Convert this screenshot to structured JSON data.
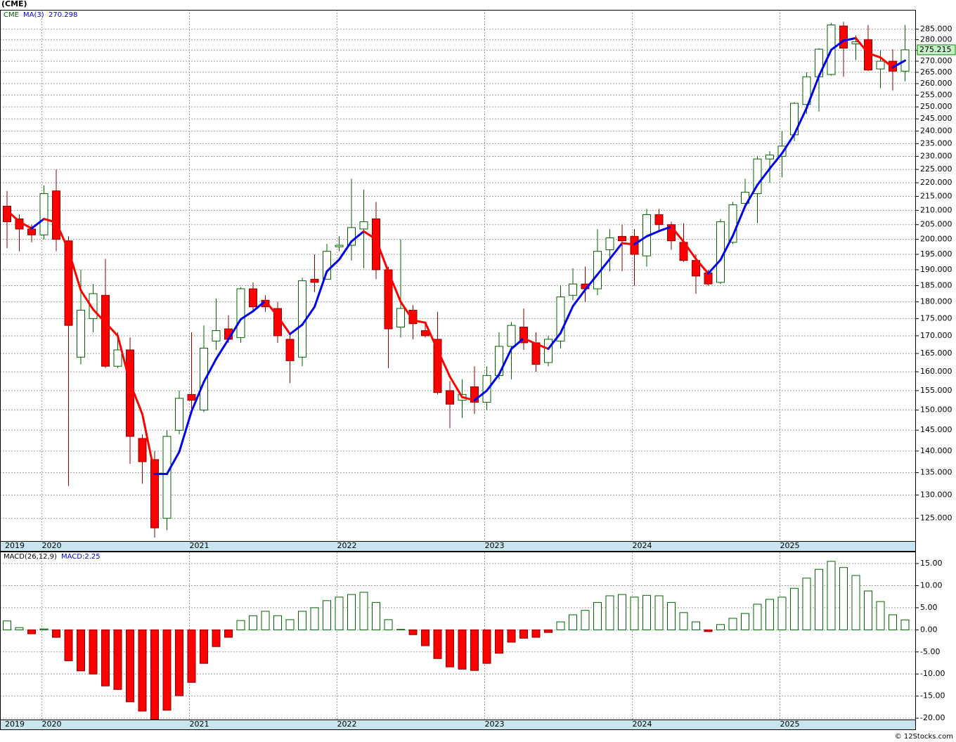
{
  "chart_data": [
    {
      "type": "candlestick",
      "title": "(CME)",
      "symbol": "CME",
      "ma_name": "MA(3)",
      "categories": [
        "2019",
        null,
        null,
        "2020",
        null,
        null,
        null,
        null,
        null,
        null,
        null,
        null,
        null,
        null,
        null,
        "2021",
        null,
        null,
        null,
        null,
        null,
        null,
        null,
        null,
        null,
        null,
        null,
        "2022",
        null,
        null,
        null,
        null,
        null,
        null,
        null,
        null,
        null,
        null,
        null,
        "2023",
        null,
        null,
        null,
        null,
        null,
        null,
        null,
        null,
        null,
        null,
        null,
        "2024",
        null,
        null,
        null,
        null,
        null,
        null,
        null,
        null,
        null,
        null,
        null,
        "2025",
        null,
        null,
        null,
        null,
        null,
        null,
        null,
        null,
        null,
        null
      ],
      "open": [
        211.5,
        207,
        203.5,
        201.5,
        217,
        199.5,
        164,
        175,
        182,
        161.5,
        166,
        143,
        138,
        125,
        145,
        154,
        150,
        168.5,
        172,
        169.5,
        184,
        180.5,
        178,
        169,
        164,
        187,
        187,
        197.5,
        198,
        203.5,
        207,
        190,
        172.5,
        177.5,
        171.5,
        169,
        155,
        152.5,
        156,
        152,
        159,
        167,
        172.5,
        168,
        162.5,
        168.5,
        182,
        185.5,
        184,
        196.5,
        201,
        201,
        194.5,
        208.5,
        205,
        199,
        193,
        189,
        186,
        199,
        212.5,
        216,
        229,
        230,
        238.5,
        251,
        263,
        264,
        286.5,
        278,
        280,
        266.5,
        270,
        265.5
      ],
      "high": [
        217,
        208.5,
        205,
        219,
        225,
        201,
        190,
        185.5,
        193.5,
        171,
        169.5,
        144,
        140,
        145,
        155,
        171,
        173,
        181,
        176,
        184.5,
        186,
        182,
        180,
        170.5,
        187.5,
        195,
        198.5,
        201,
        221.5,
        217.5,
        213,
        191,
        200,
        179,
        174,
        177,
        157.5,
        158,
        161.5,
        161.5,
        171,
        174,
        178,
        171,
        170,
        185,
        190.5,
        191,
        203.5,
        203.5,
        205,
        203.5,
        210.5,
        210.5,
        206,
        205.5,
        195,
        190,
        207,
        213,
        221.5,
        230,
        232,
        240,
        252,
        265,
        276,
        288,
        288.5,
        282,
        287,
        275,
        275.5,
        287
      ],
      "low": [
        197,
        196,
        199,
        200,
        196,
        132,
        162,
        171,
        161,
        161,
        137,
        132.5,
        121,
        122.5,
        144,
        150,
        149.5,
        166,
        168,
        168,
        177,
        177,
        168,
        157,
        161.5,
        183,
        188,
        196,
        193,
        190.5,
        187,
        161,
        169.5,
        169,
        169.5,
        154,
        145.5,
        148,
        149,
        150,
        158,
        158,
        166,
        160,
        161.5,
        166.5,
        180.5,
        180,
        182,
        189.5,
        189.5,
        185,
        191,
        203,
        196.5,
        192.5,
        182.5,
        185,
        185.5,
        198.5,
        211,
        205.5,
        220,
        222,
        236,
        247,
        248,
        263.5,
        263,
        270.5,
        265.5,
        258,
        257,
        261
      ],
      "close": [
        206,
        203.5,
        201.5,
        216,
        200,
        173,
        177.5,
        182.5,
        161.5,
        166,
        143.5,
        137.5,
        123,
        143.5,
        153,
        152.5,
        166.5,
        171.5,
        169,
        184,
        178.5,
        178.5,
        170,
        163,
        186.5,
        186,
        196,
        198,
        204,
        206,
        190,
        172,
        178,
        173.5,
        170,
        154.5,
        151.5,
        154,
        152,
        159,
        167,
        173,
        168,
        162,
        169,
        181.5,
        185.5,
        184,
        196,
        200.5,
        199.5,
        195,
        208.5,
        205,
        199.5,
        193,
        188,
        185.5,
        206,
        212,
        216.5,
        229,
        230.5,
        234,
        251.5,
        263,
        275.5,
        287,
        276,
        279,
        266,
        270,
        265.5,
        275.215
      ],
      "ma": [
        210,
        206,
        203.7,
        207,
        205.8,
        196.3,
        183.5,
        177.7,
        173.8,
        170,
        157,
        149,
        134.7,
        134.7,
        139.8,
        149.7,
        157.3,
        163.5,
        169,
        174.8,
        177.2,
        180.3,
        175.7,
        170.5,
        173.2,
        178.5,
        189.5,
        193.3,
        199.3,
        202.7,
        200,
        189.3,
        180,
        174.5,
        173.8,
        166,
        158.7,
        153.3,
        152.5,
        155,
        159.3,
        166.3,
        169.3,
        167.7,
        166.3,
        170.8,
        178.7,
        183.7,
        188.5,
        193.5,
        198.7,
        198.3,
        201,
        202.8,
        204.3,
        199.2,
        193.5,
        188.8,
        193.2,
        201.2,
        211.5,
        219.2,
        225.3,
        231.2,
        238.7,
        249.5,
        263.3,
        275.2,
        279.5,
        280.7,
        273.7,
        271.7,
        267.2,
        270.298
      ],
      "up_color": "#006400",
      "down_color": "#ff0000",
      "ma_up_color": "#0000ee",
      "ma_down_color": "#ff0000",
      "yscale": "log",
      "ylim": [
        120.3,
        294.4
      ],
      "grid": true,
      "yticks": [
        {
          "value": 285,
          "label": "285.000"
        },
        {
          "value": 280,
          "label": "280.000"
        },
        {
          "value": 275,
          "label": "275.000"
        },
        {
          "value": 270,
          "label": "270.000"
        },
        {
          "value": 265,
          "label": "265.000"
        },
        {
          "value": 260,
          "label": "260.000"
        },
        {
          "value": 255,
          "label": "255.000"
        },
        {
          "value": 250,
          "label": "250.000"
        },
        {
          "value": 245,
          "label": "245.000"
        },
        {
          "value": 240,
          "label": "240.000"
        },
        {
          "value": 235,
          "label": "235.000"
        },
        {
          "value": 230,
          "label": "230.000"
        },
        {
          "value": 225,
          "label": "225.000"
        },
        {
          "value": 220,
          "label": "220.000"
        },
        {
          "value": 215,
          "label": "215.000"
        },
        {
          "value": 210,
          "label": "210.000"
        },
        {
          "value": 205,
          "label": "205.000"
        },
        {
          "value": 200,
          "label": "200.000"
        },
        {
          "value": 195,
          "label": "195.000"
        },
        {
          "value": 190,
          "label": "190.000"
        },
        {
          "value": 185,
          "label": "185.000"
        },
        {
          "value": 180,
          "label": "180.000"
        },
        {
          "value": 175,
          "label": "175.000"
        },
        {
          "value": 170,
          "label": "170.000"
        },
        {
          "value": 165,
          "label": "165.000"
        },
        {
          "value": 160,
          "label": "160.000"
        },
        {
          "value": 155,
          "label": "155.000"
        },
        {
          "value": 150,
          "label": "150.000"
        },
        {
          "value": 145,
          "label": "145.000"
        },
        {
          "value": 140,
          "label": "140.000"
        },
        {
          "value": 135,
          "label": "135.000"
        },
        {
          "value": 130,
          "label": "130.000"
        },
        {
          "value": 125,
          "label": "125.000"
        }
      ]
    },
    {
      "type": "bar",
      "title": "MACD(26,12,9)",
      "current_label": "MACD:2.25",
      "values": [
        2.0,
        0.5,
        -0.9,
        0.2,
        -1.7,
        -7.0,
        -9.3,
        -10.0,
        -12.7,
        -13.5,
        -16.3,
        -18.4,
        -20.3,
        -18.2,
        -14.9,
        -11.9,
        -7.6,
        -3.8,
        -1.7,
        2.1,
        3.2,
        4.2,
        3.2,
        2.3,
        4.2,
        5.0,
        6.6,
        7.4,
        8.0,
        8.5,
        6.2,
        2.3,
        0.1,
        -1.1,
        -3.6,
        -6.5,
        -8.4,
        -8.9,
        -9.2,
        -7.6,
        -5.3,
        -2.8,
        -1.9,
        -1.7,
        -0.6,
        1.8,
        3.4,
        4.4,
        6.2,
        7.7,
        8.0,
        7.4,
        7.8,
        7.7,
        6.2,
        3.9,
        1.8,
        -0.4,
        1.2,
        2.6,
        3.7,
        5.8,
        6.9,
        7.4,
        9.4,
        11.7,
        13.7,
        15.5,
        14.1,
        12.3,
        8.8,
        6.4,
        3.4,
        2.25
      ],
      "up_color": "#006400",
      "down_color": "#ff0000",
      "ylim": [
        -20.3,
        17.55
      ],
      "grid": true,
      "yticks": [
        {
          "value": 15,
          "label": "15.00"
        },
        {
          "value": 10,
          "label": "10.00"
        },
        {
          "value": 5,
          "label": "5.00"
        },
        {
          "value": 0,
          "label": "0.00"
        },
        {
          "value": -5,
          "label": "-5.00"
        },
        {
          "value": -10,
          "label": "-10.00"
        },
        {
          "value": -15,
          "label": "-15.00"
        },
        {
          "value": -20,
          "label": "-20.00"
        }
      ]
    }
  ],
  "credit": "© 12Stocks.com"
}
